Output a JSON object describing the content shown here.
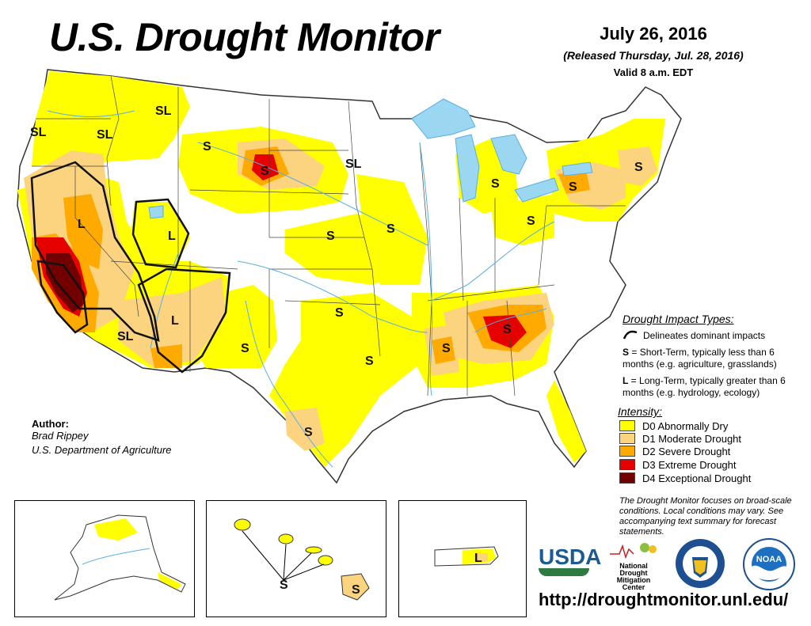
{
  "header": {
    "title": "U.S. Drought Monitor",
    "date": "July 26, 2016",
    "released": "(Released Thursday, Jul. 28, 2016)",
    "valid": "Valid 8 a.m. EDT"
  },
  "map": {
    "impact_labels": {
      "sl_or_coast": "SL",
      "sl_or_inland": "SL",
      "sl_id": "SL",
      "s_mt": "S",
      "s_wy": "S",
      "sl_nd": "SL",
      "l_nv": "L",
      "l_ut": "L",
      "l_az": "L",
      "sl_az": "SL",
      "s_nm": "S",
      "s_ne": "S",
      "s_ks": "S",
      "s_ok": "S",
      "s_ok2": "S",
      "s_tx": "S",
      "s_mi": "S",
      "s_oh": "S",
      "s_ny": "S",
      "s_ma": "S",
      "s_ms": "S",
      "s_tn": "S",
      "s_hi": "S",
      "s_hi2": "S",
      "l_pr": "L"
    },
    "colors": {
      "d0": "#ffff00",
      "d1": "#fcd37f",
      "d2": "#ffaa00",
      "d3": "#e60000",
      "d4": "#730000",
      "water": "#9bd7f0",
      "river": "#5aaee6"
    }
  },
  "legend": {
    "impact_title": "Drought Impact Types:",
    "delineates": "Delineates dominant impacts",
    "s_key": "S",
    "s_desc": " = Short-Term, typically less than 6 months (e.g. agriculture, grasslands)",
    "l_key": "L",
    "l_desc": " = Long-Term, typically greater than 6 months (e.g. hydrology, ecology)",
    "intensity_title": "Intensity:",
    "levels": [
      {
        "label": "D0 Abnormally Dry",
        "color": "#ffff00"
      },
      {
        "label": "D1 Moderate Drought",
        "color": "#fcd37f"
      },
      {
        "label": "D2 Severe Drought",
        "color": "#ffaa00"
      },
      {
        "label": "D3 Extreme Drought",
        "color": "#e60000"
      },
      {
        "label": "D4 Exceptional Drought",
        "color": "#730000"
      }
    ],
    "note": "The Drought Monitor focuses on broad-scale conditions. Local conditions may vary. See accompanying text summary for forecast statements."
  },
  "author": {
    "label": "Author:",
    "name": "Brad Rippey",
    "org": "U.S. Department of Agriculture"
  },
  "logos": {
    "usda": "USDA",
    "ndmc_line1": "National",
    "ndmc_line2": "Drought",
    "ndmc_line3": "Mitigation",
    "ndmc_line4": "Center",
    "noaa": "NOAA"
  },
  "footer": {
    "url": "http://droughtmonitor.unl.edu/"
  }
}
